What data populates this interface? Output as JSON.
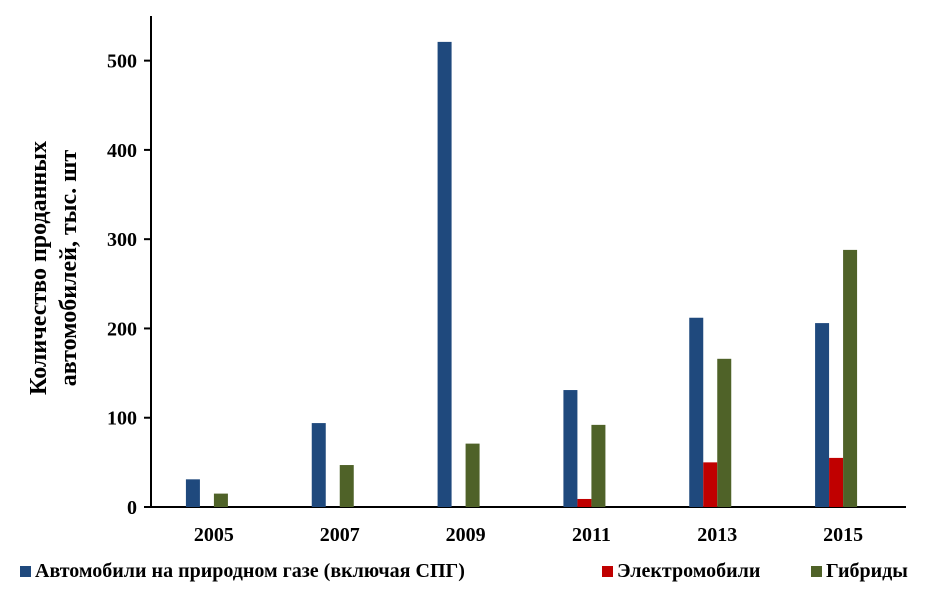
{
  "chart_data": {
    "type": "bar",
    "title": "",
    "xlabel": "",
    "ylabel_lines": [
      "Количество проданных",
      "автомобилей, тыс. шт"
    ],
    "categories": [
      "2005",
      "2007",
      "2009",
      "2011",
      "2013",
      "2015"
    ],
    "ylim": [
      0,
      550
    ],
    "yticks": [
      0,
      100,
      200,
      300,
      400,
      500
    ],
    "grid": false,
    "legend_position": "bottom",
    "series": [
      {
        "name": "Автомобили на природном газе (включая СПГ)",
        "color": "#1f497d",
        "values": [
          31,
          94,
          521,
          131,
          212,
          206
        ]
      },
      {
        "name": "Электромобили",
        "color": "#c00000",
        "values": [
          0,
          0,
          0,
          9,
          50,
          55
        ]
      },
      {
        "name": "Гибриды",
        "color": "#4f6228",
        "values": [
          15,
          47,
          71,
          92,
          166,
          288
        ]
      }
    ]
  }
}
